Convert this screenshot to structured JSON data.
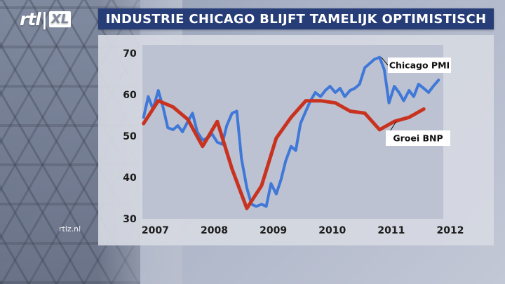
{
  "channel": {
    "logo_text": "rtl",
    "logo_badge": "XL",
    "watermark": "rtlz.nl"
  },
  "header": {
    "title": "INDUSTRIE CHICAGO BLIJFT TAMELIJK OPTIMISTISCH"
  },
  "colors": {
    "title_bar": "#263d78",
    "pmi_line": "#3f78d8",
    "bnp_line": "#c8321e",
    "plot_bg": "#bcc2d1"
  },
  "chart_data": {
    "type": "line",
    "title": "INDUSTRIE CHICAGO BLIJFT TAMELIJK OPTIMISTISCH",
    "xlabel": "",
    "ylabel": "",
    "xlim": [
      2006.9,
      2012.0
    ],
    "ylim": [
      30,
      72
    ],
    "x_ticks": [
      "2007",
      "2008",
      "2009",
      "2010",
      "2011",
      "2012"
    ],
    "y_ticks": [
      "70",
      "60",
      "50",
      "40",
      "30"
    ],
    "grid": false,
    "series": [
      {
        "name": "Chicago PMI",
        "color": "#3f78d8",
        "points": [
          [
            2006.92,
            54.5
          ],
          [
            2007.0,
            59.5
          ],
          [
            2007.08,
            56.5
          ],
          [
            2007.17,
            61.0
          ],
          [
            2007.25,
            57.0
          ],
          [
            2007.33,
            52.0
          ],
          [
            2007.42,
            51.5
          ],
          [
            2007.5,
            52.5
          ],
          [
            2007.58,
            51.0
          ],
          [
            2007.67,
            53.5
          ],
          [
            2007.75,
            55.5
          ],
          [
            2007.83,
            51.0
          ],
          [
            2007.92,
            49.0
          ],
          [
            2008.0,
            49.5
          ],
          [
            2008.08,
            50.5
          ],
          [
            2008.17,
            48.5
          ],
          [
            2008.25,
            48.0
          ],
          [
            2008.33,
            52.5
          ],
          [
            2008.42,
            55.5
          ],
          [
            2008.5,
            56.0
          ],
          [
            2008.58,
            44.5
          ],
          [
            2008.67,
            37.5
          ],
          [
            2008.75,
            33.5
          ],
          [
            2008.83,
            33.0
          ],
          [
            2008.92,
            33.5
          ],
          [
            2009.0,
            33.0
          ],
          [
            2009.08,
            38.5
          ],
          [
            2009.17,
            36.0
          ],
          [
            2009.25,
            39.5
          ],
          [
            2009.33,
            44.0
          ],
          [
            2009.42,
            47.5
          ],
          [
            2009.5,
            46.5
          ],
          [
            2009.58,
            53.0
          ],
          [
            2009.67,
            56.0
          ],
          [
            2009.75,
            58.5
          ],
          [
            2009.83,
            60.5
          ],
          [
            2009.92,
            59.5
          ],
          [
            2010.0,
            61.0
          ],
          [
            2010.08,
            62.0
          ],
          [
            2010.17,
            60.5
          ],
          [
            2010.25,
            61.5
          ],
          [
            2010.33,
            59.5
          ],
          [
            2010.42,
            61.0
          ],
          [
            2010.5,
            61.5
          ],
          [
            2010.58,
            62.5
          ],
          [
            2010.67,
            66.5
          ],
          [
            2010.75,
            67.5
          ],
          [
            2010.83,
            68.5
          ],
          [
            2010.92,
            69.0
          ],
          [
            2011.0,
            66.0
          ],
          [
            2011.08,
            58.0
          ],
          [
            2011.17,
            62.0
          ],
          [
            2011.25,
            60.5
          ],
          [
            2011.33,
            58.5
          ],
          [
            2011.42,
            61.0
          ],
          [
            2011.5,
            59.5
          ],
          [
            2011.58,
            62.5
          ],
          [
            2011.67,
            61.5
          ],
          [
            2011.75,
            60.5
          ],
          [
            2011.83,
            62.0
          ],
          [
            2011.92,
            63.5
          ]
        ]
      },
      {
        "name": "Groei BNP",
        "color": "#c8321e",
        "points": [
          [
            2006.92,
            53.0
          ],
          [
            2007.17,
            58.5
          ],
          [
            2007.42,
            57.0
          ],
          [
            2007.67,
            54.0
          ],
          [
            2007.92,
            47.5
          ],
          [
            2008.17,
            53.5
          ],
          [
            2008.42,
            42.0
          ],
          [
            2008.67,
            32.5
          ],
          [
            2008.92,
            38.0
          ],
          [
            2009.17,
            49.5
          ],
          [
            2009.42,
            54.5
          ],
          [
            2009.67,
            58.5
          ],
          [
            2009.92,
            58.5
          ],
          [
            2010.17,
            58.0
          ],
          [
            2010.42,
            56.0
          ],
          [
            2010.67,
            55.5
          ],
          [
            2010.92,
            51.5
          ],
          [
            2011.17,
            53.5
          ],
          [
            2011.42,
            54.5
          ],
          [
            2011.67,
            56.5
          ]
        ]
      }
    ]
  }
}
